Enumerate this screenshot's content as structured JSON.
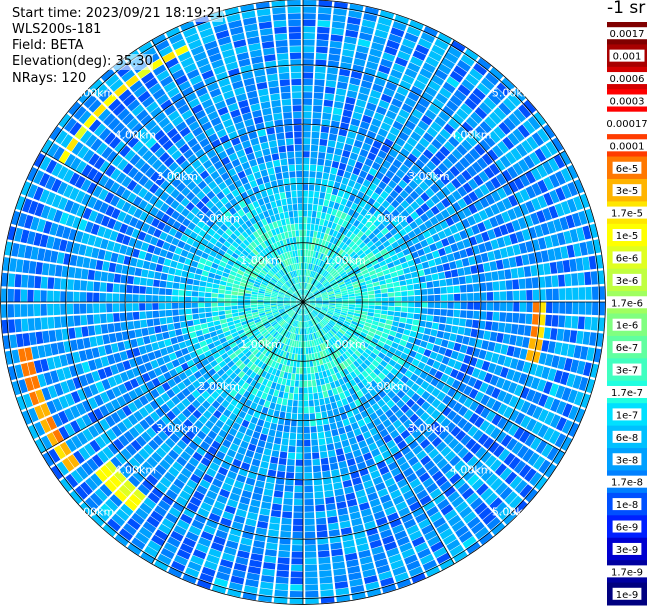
{
  "info": {
    "start_time": "Start time: 2023/09/21 18:19:21",
    "instrument": "WLS200s-181",
    "field": "Field: BETA",
    "elevation": "Elevation(deg): 35.30",
    "nrays": "NRays: 120"
  },
  "colorbar": {
    "title": "-1 sr",
    "labels": [
      "0.0017",
      "0.001",
      "0.0006",
      "0.0003",
      "0.00017",
      "0.0001",
      "6e-5",
      "3e-5",
      "1.7e-5",
      "1e-5",
      "6e-6",
      "3e-6",
      "1.7e-6",
      "1e-6",
      "6e-7",
      "3e-7",
      "1.7e-7",
      "1e-7",
      "6e-8",
      "3e-8",
      "1.7e-8",
      "1e-8",
      "6e-9",
      "3e-9",
      "1.7e-9",
      "1e-9"
    ],
    "colors": [
      "#800000",
      "#a80000",
      "#d40000",
      "#ff0000",
      "#ffffff",
      "#ff3c00",
      "#ff7800",
      "#ffb400",
      "#ffe600",
      "#ffff00",
      "#e0ff20",
      "#c0ff40",
      "#a0ff60",
      "#80ff80",
      "#60ffa0",
      "#40ffc0",
      "#20ffe0",
      "#00e0ff",
      "#00c0ff",
      "#00a0ff",
      "#0080ff",
      "#0050ff",
      "#0020ff",
      "#0000d0",
      "#0000a0",
      "#000080"
    ]
  },
  "chart_data": {
    "type": "heatmap",
    "projection": "polar PPI scan",
    "field": "BETA",
    "n_rays": 120,
    "range_rings_km": [
      1,
      2,
      3,
      4,
      5
    ],
    "range_ring_labels": [
      "1.00km",
      "2.00km",
      "3.00km",
      "4.00km",
      "5.00km"
    ],
    "max_range_km": 5.1,
    "radial_spokes": 12,
    "colorscale": "log",
    "value_range": [
      1e-09,
      0.0017
    ],
    "typical_background_value": 3e-08,
    "near_center_value": 1.7e-07,
    "high_return_arcs": [
      {
        "azimuth_deg": [
          300,
          335
        ],
        "range_km": [
          4.6,
          4.8
        ],
        "value": 1e-05
      },
      {
        "azimuth_deg": [
          90,
          105
        ],
        "range_km": [
          3.9,
          4.1
        ],
        "value": 3e-05
      },
      {
        "azimuth_deg": [
          235,
          260
        ],
        "range_km": [
          4.7,
          4.9
        ],
        "value": 3e-05
      },
      {
        "azimuth_deg": [
          218,
          232
        ],
        "range_km": [
          4.2,
          4.5
        ],
        "value": 6e-06
      }
    ]
  }
}
